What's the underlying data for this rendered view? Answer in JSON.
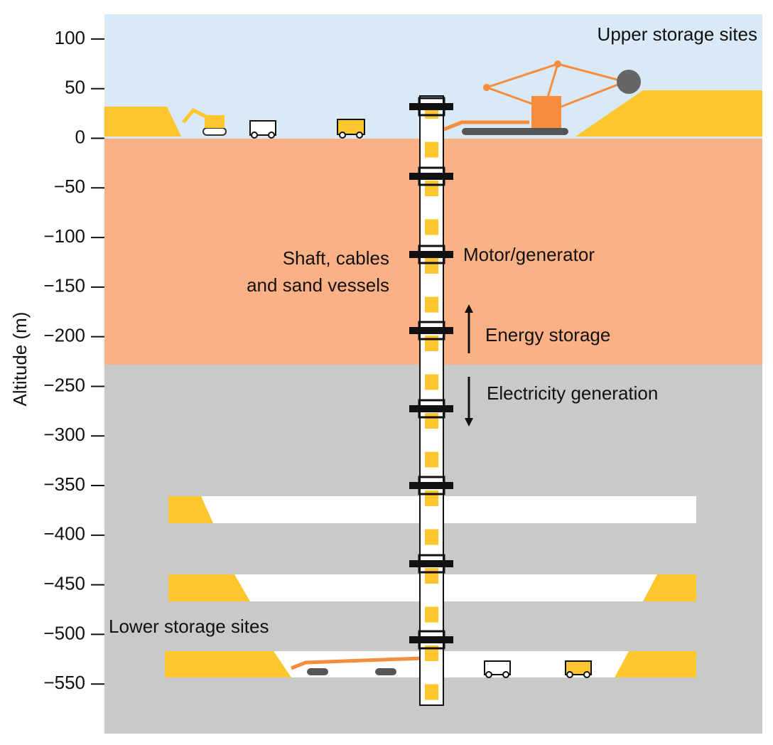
{
  "axis": {
    "label": "Altitude (m)",
    "ylim": [
      -600,
      125
    ],
    "yticks": [
      100,
      50,
      0,
      {
        "value": -50,
        "label": "−50"
      },
      {
        "value": -100,
        "label": "−100"
      },
      {
        "value": -150,
        "label": "−150"
      },
      {
        "value": -200,
        "label": "−200"
      },
      {
        "value": -250,
        "label": "−250"
      },
      {
        "value": -300,
        "label": "−300"
      },
      {
        "value": -350,
        "label": "−350"
      },
      {
        "value": -400,
        "label": "−400"
      },
      {
        "value": -450,
        "label": "−450"
      },
      {
        "value": -500,
        "label": "−500"
      },
      {
        "value": -550,
        "label": "−550"
      }
    ]
  },
  "labels": {
    "upper": "Upper storage sites",
    "shaft": [
      "Shaft, cables",
      "and sand vessels"
    ],
    "motor": "Motor/generator",
    "storage": "Energy storage",
    "generation": "Electricity generation",
    "lower": "Lower storage sites"
  }
}
